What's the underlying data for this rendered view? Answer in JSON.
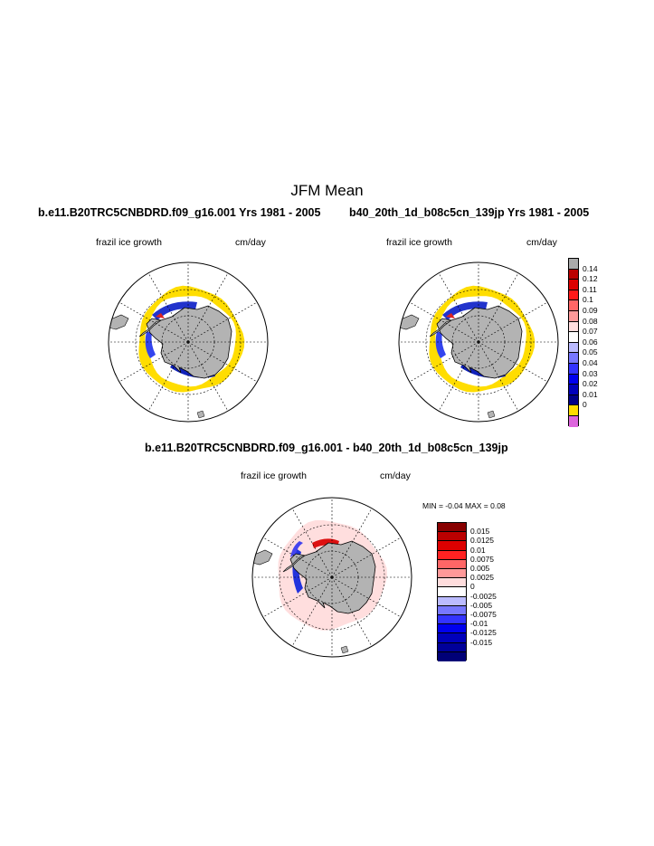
{
  "figure": {
    "title": "JFM Mean",
    "left_case": "b.e11.B20TRC5CNBDRD.f09_g16.001  Yrs 1981 - 2005",
    "right_case": "b40_20th_1d_b08c5cn_139jp  Yrs 1981 - 2005",
    "diff_title": "b.e11.B20TRC5CNBDRD.f09_g16.001 - b40_20th_1d_b08c5cn_139jp"
  },
  "panels": {
    "left": {
      "variable": "frazil ice growth",
      "units": "cm/day"
    },
    "right": {
      "variable": "frazil ice growth",
      "units": "cm/day"
    },
    "diff": {
      "variable": "frazil ice growth",
      "units": "cm/day",
      "minmax": "MIN =  -0.04 MAX =   0.08"
    }
  },
  "colorbars": {
    "main": {
      "labels": [
        "0.14",
        "0.12",
        "0.11",
        "0.1",
        "0.09",
        "0.08",
        "0.07",
        "0.06",
        "0.05",
        "0.04",
        "0.03",
        "0.02",
        "0.01",
        "0"
      ],
      "colors": [
        "#aaaaaa",
        "#bb0000",
        "#dd0000",
        "#ff1a1a",
        "#ff6666",
        "#ff9999",
        "#ffdddd",
        "#ffffff",
        "#bbbbff",
        "#7777ff",
        "#3333ff",
        "#0000ee",
        "#0000bb",
        "#000088",
        "#ffdd00",
        "#dd66dd"
      ]
    },
    "diff": {
      "labels": [
        "0.015",
        "0.0125",
        "0.01",
        "0.0075",
        "0.005",
        "0.0025",
        "0",
        "-0.0025",
        "-0.005",
        "-0.0075",
        "-0.01",
        "-0.0125",
        "-0.015"
      ],
      "colors": [
        "#880000",
        "#bb0000",
        "#dd0000",
        "#ff2222",
        "#ff6666",
        "#ff9999",
        "#ffdddd",
        "#ffffff",
        "#bbbbff",
        "#7777ff",
        "#3333ff",
        "#0000ee",
        "#0000bb",
        "#000099",
        "#000077"
      ]
    }
  },
  "map_colors": {
    "land": "#b3b3b3",
    "ice_edge": "#ffdd00",
    "diff_background": "#ffdede"
  }
}
